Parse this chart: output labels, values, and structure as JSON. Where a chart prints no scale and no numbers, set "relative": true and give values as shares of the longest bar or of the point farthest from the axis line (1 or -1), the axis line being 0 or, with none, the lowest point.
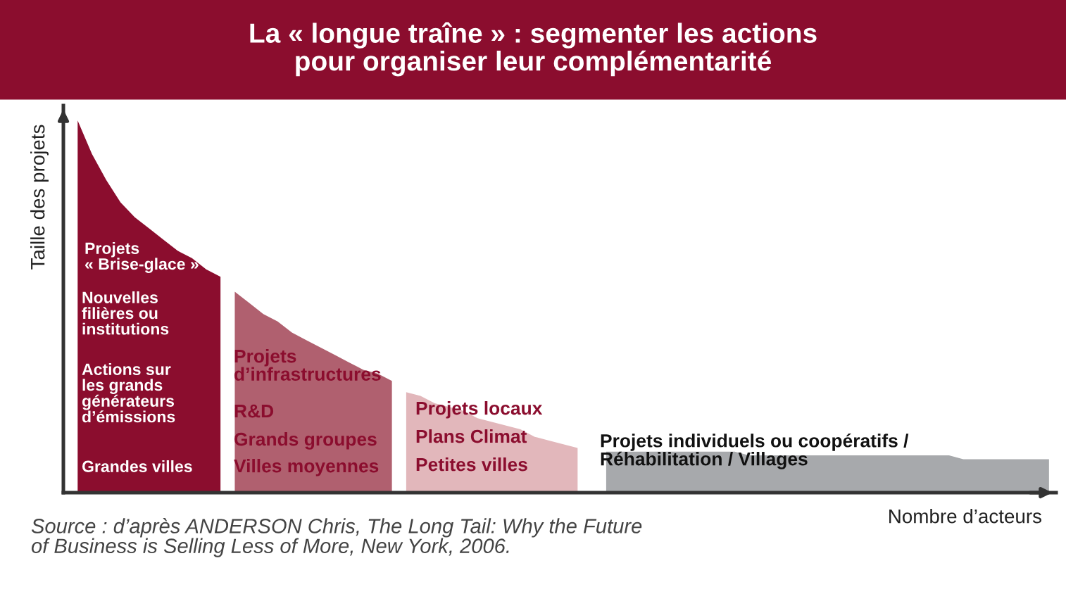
{
  "chart_data": {
    "type": "area",
    "relative": true,
    "title": "La « longue traîne » : segmenter les actions\npour organiser leur complémentarité",
    "xlabel": "Nombre d’acteurs",
    "ylabel": "Taille des projets",
    "categories": [
      null,
      null,
      null,
      null,
      null,
      null,
      null,
      null,
      null,
      null,
      null,
      null,
      null,
      null,
      null,
      null,
      null,
      null,
      null,
      null,
      null,
      null,
      null,
      null,
      null,
      null,
      null,
      null,
      null,
      null,
      null,
      null,
      null,
      null,
      null,
      null,
      null,
      null,
      null,
      null,
      null,
      null,
      null,
      null,
      null,
      null,
      null,
      null,
      null,
      null,
      null,
      null,
      null,
      null,
      null,
      null,
      null,
      null,
      null,
      null,
      null,
      null,
      null,
      null,
      null,
      null,
      null,
      null,
      null
    ],
    "series": [
      {
        "color": "#8b0d2e",
        "values": [
          1.0,
          0.91,
          0.84,
          0.78,
          0.74,
          0.71,
          0.68,
          0.65,
          0.63,
          0.6,
          0.58,
          null,
          null,
          null,
          null,
          null,
          null,
          null,
          null,
          null,
          null,
          null,
          null,
          null,
          null,
          null,
          null,
          null,
          null,
          null,
          null,
          null,
          null,
          null,
          null,
          null,
          null,
          null,
          null,
          null,
          null,
          null,
          null,
          null,
          null,
          null,
          null,
          null,
          null,
          null,
          null,
          null,
          null,
          null,
          null,
          null,
          null,
          null,
          null,
          null,
          null,
          null,
          null,
          null,
          null,
          null,
          null,
          null,
          null
        ]
      },
      {
        "color": "#b0606f",
        "values": [
          null,
          null,
          null,
          null,
          null,
          null,
          null,
          null,
          null,
          null,
          null,
          0.54,
          0.51,
          0.48,
          0.46,
          0.43,
          0.41,
          0.39,
          0.37,
          0.35,
          0.33,
          0.32,
          0.3,
          null,
          null,
          null,
          null,
          null,
          null,
          null,
          null,
          null,
          null,
          null,
          null,
          null,
          null,
          null,
          null,
          null,
          null,
          null,
          null,
          null,
          null,
          null,
          null,
          null,
          null,
          null,
          null,
          null,
          null,
          null,
          null,
          null,
          null,
          null,
          null,
          null,
          null,
          null,
          null,
          null,
          null,
          null,
          null,
          null,
          null
        ]
      },
      {
        "color": "#e2b7bb",
        "values": [
          null,
          null,
          null,
          null,
          null,
          null,
          null,
          null,
          null,
          null,
          null,
          null,
          null,
          null,
          null,
          null,
          null,
          null,
          null,
          null,
          null,
          null,
          null,
          0.27,
          0.26,
          0.24,
          0.23,
          0.22,
          0.2,
          0.19,
          0.18,
          0.17,
          0.15,
          0.14,
          0.13,
          0.12,
          null,
          null,
          null,
          null,
          null,
          null,
          null,
          null,
          null,
          null,
          null,
          null,
          null,
          null,
          null,
          null,
          null,
          null,
          null,
          null,
          null,
          null,
          null,
          null,
          null,
          null,
          null,
          null,
          null,
          null,
          null,
          null,
          null
        ]
      },
      {
        "color": "#a7a9ac",
        "values": [
          null,
          null,
          null,
          null,
          null,
          null,
          null,
          null,
          null,
          null,
          null,
          null,
          null,
          null,
          null,
          null,
          null,
          null,
          null,
          null,
          null,
          null,
          null,
          null,
          null,
          null,
          null,
          null,
          null,
          null,
          null,
          null,
          null,
          null,
          null,
          null,
          null,
          0.11,
          0.11,
          0.11,
          0.11,
          0.11,
          0.11,
          0.11,
          0.11,
          0.11,
          0.11,
          0.1,
          0.1,
          0.1,
          0.1,
          0.1,
          0.1,
          0.1,
          0.1,
          0.1,
          0.1,
          0.1,
          0.1,
          0.1,
          0.1,
          0.1,
          0.09,
          0.09,
          0.09,
          0.09,
          0.09,
          0.09,
          0.09
        ]
      }
    ],
    "annotations": [
      "Projets\n« Brise-glace »",
      "Nouvelles\nfilières ou\ninstitutions",
      "Actions sur\nles grands\ngénérateurs\nd’émissions",
      "Grandes villes",
      "Projets\nd’infrastructures",
      "R&D",
      "Grands groupes",
      "Villes moyennes",
      "Projets locaux",
      "Plans Climat",
      "Petites villes",
      "Projets individuels ou coopératifs /\nRéhabilitation / Villages",
      "Source : d’après ANDERSON Chris, The Long Tail: Why the Future\nof Business is Selling Less of More, New York, 2006."
    ]
  }
}
